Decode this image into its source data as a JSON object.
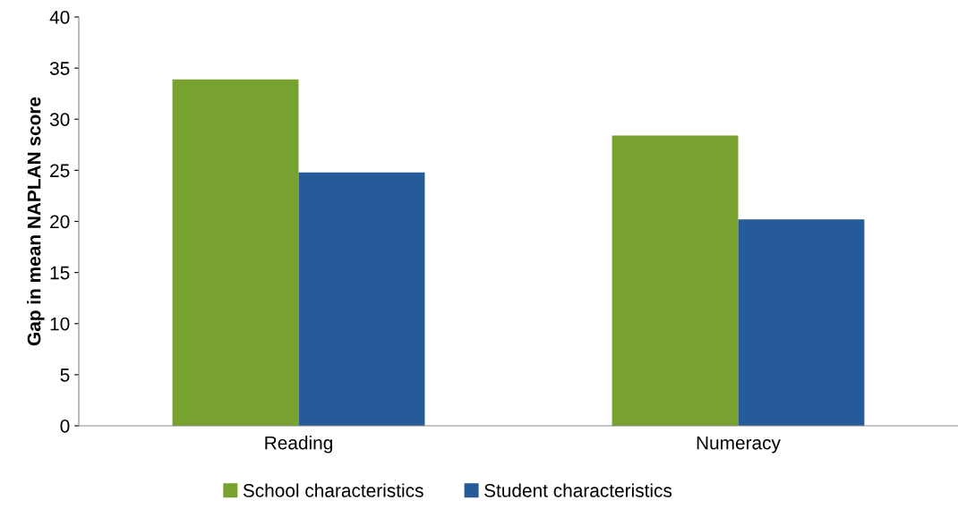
{
  "chart_data": {
    "type": "bar",
    "ylabel": "Gap in mean NAPLAN score",
    "categories": [
      "Reading",
      "Numeracy"
    ],
    "series": [
      {
        "name": "School characteristics",
        "color": "#78a22f",
        "values": [
          33.9,
          28.4
        ]
      },
      {
        "name": "Student characteristics",
        "color": "#265b9a",
        "values": [
          24.8,
          20.2
        ]
      }
    ],
    "ylim": [
      0,
      40
    ],
    "yticks": [
      0,
      5,
      10,
      15,
      20,
      25,
      30,
      35,
      40
    ],
    "grid": false,
    "legend": "bottom"
  }
}
